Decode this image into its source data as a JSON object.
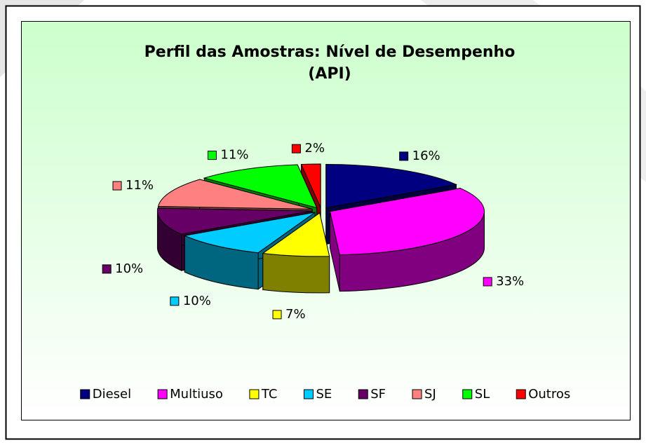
{
  "chart_data": {
    "type": "pie3d",
    "title": [
      "Perfil das Amostras: Nível de Desempenho",
      "(API)"
    ],
    "categories": [
      "Diesel",
      "Multiuso",
      "TC",
      "SE",
      "SF",
      "SJ",
      "SL",
      "Outros"
    ],
    "values": [
      16,
      33,
      7,
      10,
      10,
      11,
      11,
      2
    ],
    "value_labels": [
      "16%",
      "33%",
      "7%",
      "10%",
      "10%",
      "11%",
      "11%",
      "2%"
    ],
    "colors": [
      "#000080",
      "#ff00ff",
      "#ffff00",
      "#00ccff",
      "#660066",
      "#ff8080",
      "#00ff00",
      "#ff0000"
    ],
    "legend": "bottom"
  }
}
